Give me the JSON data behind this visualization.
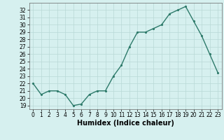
{
  "x": [
    0,
    1,
    2,
    3,
    4,
    5,
    6,
    7,
    8,
    9,
    10,
    11,
    12,
    13,
    14,
    15,
    16,
    17,
    18,
    19,
    20,
    21,
    22,
    23
  ],
  "y": [
    22,
    20.5,
    21,
    21,
    20.5,
    19,
    19.2,
    20.5,
    21,
    21,
    23,
    24.5,
    27,
    29,
    29,
    29.5,
    30,
    31.5,
    32,
    32.5,
    30.5,
    28.5,
    26,
    23.5
  ],
  "line_color": "#2d7a6a",
  "marker_color": "#2d7a6a",
  "bg_color": "#d6f0ef",
  "grid_color": "#b8d8d6",
  "xlabel": "Humidex (Indice chaleur)",
  "xlim": [
    -0.5,
    23.5
  ],
  "ylim": [
    18.5,
    33
  ],
  "yticks": [
    19,
    20,
    21,
    22,
    23,
    24,
    25,
    26,
    27,
    28,
    29,
    30,
    31,
    32
  ],
  "xticks": [
    0,
    1,
    2,
    3,
    4,
    5,
    6,
    7,
    8,
    9,
    10,
    11,
    12,
    13,
    14,
    15,
    16,
    17,
    18,
    19,
    20,
    21,
    22,
    23
  ],
  "tick_fontsize": 5.5,
  "xlabel_fontsize": 7,
  "marker_size": 2.5,
  "line_width": 1.0
}
